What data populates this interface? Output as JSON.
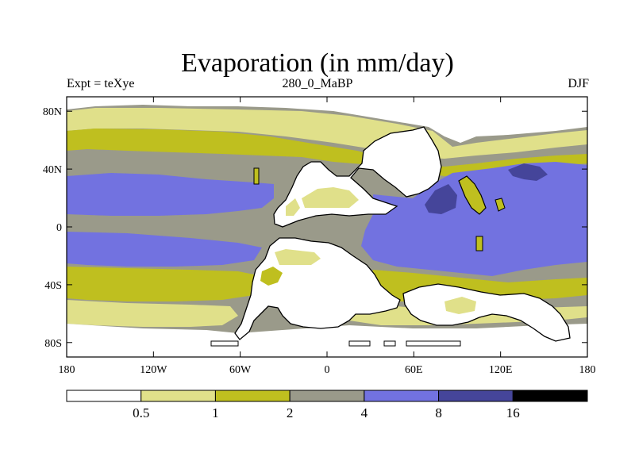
{
  "header": {
    "title": "Evaporation (in mm/day)",
    "left_label": "Expt = teXye",
    "center_label": "280_0_MaBP",
    "right_label": "DJF"
  },
  "axes": {
    "y_ticks": [
      {
        "lat": 80,
        "label": "80N"
      },
      {
        "lat": 40,
        "label": "40N"
      },
      {
        "lat": 0,
        "label": "0"
      },
      {
        "lat": -40,
        "label": "40S"
      },
      {
        "lat": -80,
        "label": "80S"
      }
    ],
    "x_ticks": [
      {
        "lon": -180,
        "label": "180"
      },
      {
        "lon": -120,
        "label": "120W"
      },
      {
        "lon": -60,
        "label": "60W"
      },
      {
        "lon": 0,
        "label": "0"
      },
      {
        "lon": 60,
        "label": "60E"
      },
      {
        "lon": 120,
        "label": "120E"
      },
      {
        "lon": 180,
        "label": "180"
      }
    ],
    "lon_range": [
      -180,
      180
    ],
    "lat_range": [
      -90,
      90
    ]
  },
  "colorbar": {
    "colors": [
      "#ffffff",
      "#e0e08a",
      "#bfbf1f",
      "#9a9a8a",
      "#7272e0",
      "#45459a",
      "#000000"
    ],
    "labels": [
      "0.5",
      "1",
      "2",
      "4",
      "8",
      "16"
    ]
  },
  "colors": {
    "c0": "#ffffff",
    "c1": "#e0e08a",
    "c2": "#bfbf1f",
    "c3": "#9a9a8a",
    "c4": "#7272e0",
    "c5": "#45459a"
  }
}
